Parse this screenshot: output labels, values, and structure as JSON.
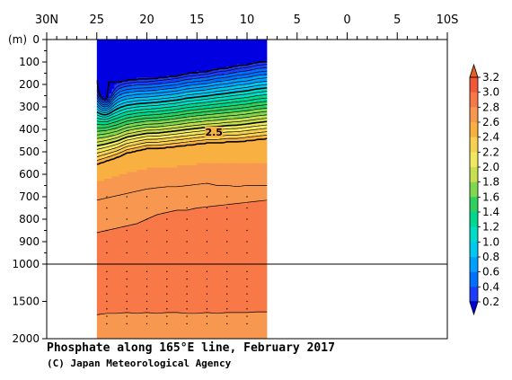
{
  "chart_data": {
    "type": "heatmap",
    "title": "Phosphate along 165°E line, February 2017",
    "credit": "(C) Japan Meteorological Agency",
    "ylabel": "(m)",
    "x_axis": {
      "ticks": [
        30,
        25,
        20,
        15,
        10,
        5,
        0,
        -5,
        -10
      ],
      "tick_labels": [
        "30N",
        "25",
        "20",
        "15",
        "10",
        "5",
        "0",
        "5",
        "10S"
      ],
      "range": [
        30,
        -10
      ]
    },
    "y_axis": {
      "upper_ticks": [
        0,
        100,
        200,
        300,
        400,
        500,
        600,
        700,
        800,
        900,
        1000
      ],
      "upper_tick_labels": [
        "0",
        "100",
        "200",
        "300",
        "400",
        "500",
        "600",
        "700",
        "800",
        "900",
        "1000"
      ],
      "lower_ticks": [
        1500,
        2000
      ],
      "lower_tick_labels": [
        "1500",
        "2000"
      ],
      "range": [
        0,
        2000
      ],
      "break_depth": 1000
    },
    "data_extent": {
      "lat_north": 25,
      "lat_south": 8,
      "depth_max": 2000
    },
    "colorbar": {
      "levels": [
        0.2,
        0.4,
        0.6,
        0.8,
        1.0,
        1.2,
        1.4,
        1.6,
        1.8,
        2.0,
        2.2,
        2.4,
        2.6,
        2.8,
        3.0,
        3.2
      ],
      "labels": [
        "0.2",
        "0.4",
        "0.6",
        "0.8",
        "1.0",
        "1.2",
        "1.4",
        "1.6",
        "1.8",
        "2.0",
        "2.2",
        "2.4",
        "2.6",
        "2.8",
        "3.0",
        "3.2"
      ],
      "colors": [
        "#1c3cff",
        "#0070ff",
        "#00a0ff",
        "#00c8f0",
        "#00dcc8",
        "#00d890",
        "#30d060",
        "#80d850",
        "#c8e050",
        "#f0e860",
        "#f8d050",
        "#f8b040",
        "#f89850",
        "#f87848",
        "#f05838",
        "#e84830"
      ],
      "below_color": "#0000e0",
      "above_color": "#e86020"
    },
    "annotations": [
      {
        "text": "2.5",
        "lat": 13.3,
        "depth": 420
      }
    ],
    "profiles": {
      "lats": [
        25,
        24,
        23,
        22,
        21,
        20,
        19,
        18,
        17,
        16,
        15,
        14,
        13,
        12,
        11,
        10,
        9,
        8
      ],
      "depth_low_02": [
        180,
        190,
        190,
        180,
        175,
        175,
        170,
        165,
        160,
        150,
        145,
        140,
        130,
        125,
        115,
        110,
        100,
        95
      ],
      "depth_25": [
        555,
        540,
        525,
        505,
        495,
        485,
        485,
        480,
        475,
        470,
        465,
        460,
        460,
        455,
        455,
        450,
        445,
        440
      ],
      "depth_27": [
        715,
        705,
        695,
        685,
        675,
        665,
        660,
        655,
        655,
        650,
        645,
        640,
        650,
        650,
        655,
        650,
        650,
        650
      ],
      "depth_28_upper": [
        860,
        850,
        840,
        830,
        820,
        800,
        780,
        770,
        760,
        760,
        750,
        745,
        740,
        735,
        730,
        725,
        720,
        715
      ],
      "depth_28_lower": [
        1680,
        1660,
        1660,
        1650,
        1660,
        1650,
        1660,
        1650,
        1650,
        1660,
        1660,
        1650,
        1660,
        1650,
        1650,
        1650,
        1640,
        1640
      ]
    }
  }
}
